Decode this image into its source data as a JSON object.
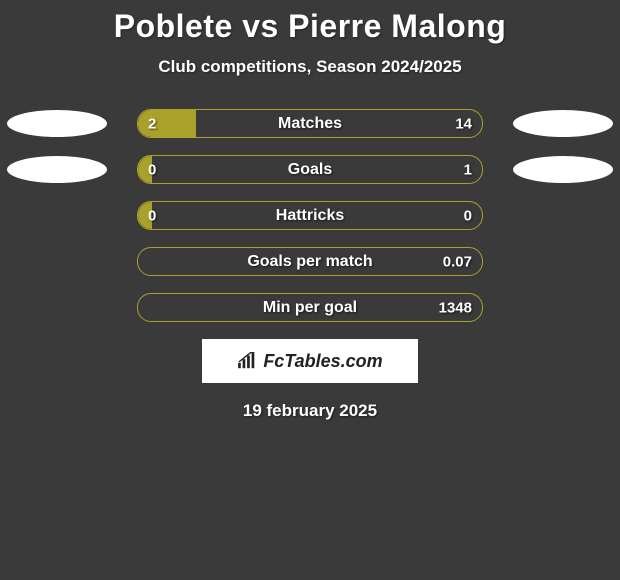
{
  "title": "Poblete vs Pierre Malong",
  "subtitle": "Club competitions, Season 2024/2025",
  "date": "19 february 2025",
  "logo": "FcTables.com",
  "colors": {
    "background": "#3a3a3a",
    "bar_fill": "#a9a129",
    "bar_border": "#a9a129",
    "ellipse": "#ffffff",
    "text": "#ffffff"
  },
  "stats": [
    {
      "label": "Matches",
      "left_value": "2",
      "right_value": "14",
      "left_pct": 17,
      "right_pct": 0,
      "show_ellipse_left": true,
      "show_ellipse_right": true
    },
    {
      "label": "Goals",
      "left_value": "0",
      "right_value": "1",
      "left_pct": 4,
      "right_pct": 0,
      "show_ellipse_left": true,
      "show_ellipse_right": true
    },
    {
      "label": "Hattricks",
      "left_value": "0",
      "right_value": "0",
      "left_pct": 4,
      "right_pct": 0,
      "show_ellipse_left": false,
      "show_ellipse_right": false
    },
    {
      "label": "Goals per match",
      "left_value": "",
      "right_value": "0.07",
      "left_pct": 0,
      "right_pct": 0,
      "show_ellipse_left": false,
      "show_ellipse_right": false
    },
    {
      "label": "Min per goal",
      "left_value": "",
      "right_value": "1348",
      "left_pct": 0,
      "right_pct": 0,
      "show_ellipse_left": false,
      "show_ellipse_right": false
    }
  ]
}
